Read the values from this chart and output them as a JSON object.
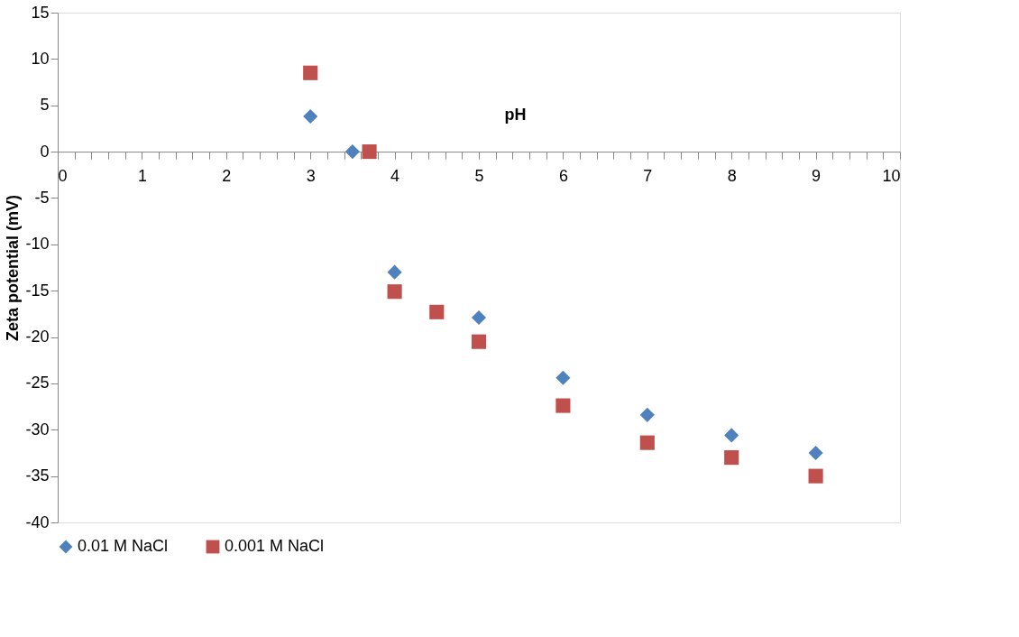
{
  "chart_data": {
    "type": "scatter",
    "xlabel": "pH",
    "ylabel": "Zeta potential (mV)",
    "xlim": [
      0,
      10
    ],
    "ylim": [
      -40,
      15
    ],
    "xticks": [
      0,
      {
        "value": 0.2,
        "label": null
      },
      {
        "value": 0.4,
        "label": null
      },
      {
        "value": 0.6,
        "label": null
      },
      {
        "value": 0.8,
        "label": null
      },
      1,
      {
        "value": 1.2,
        "label": null
      },
      {
        "value": 1.4,
        "label": null
      },
      {
        "value": 1.6,
        "label": null
      },
      {
        "value": 1.8,
        "label": null
      },
      2,
      {
        "value": 2.2,
        "label": null
      },
      {
        "value": 2.4,
        "label": null
      },
      {
        "value": 2.6,
        "label": null
      },
      {
        "value": 2.8,
        "label": null
      },
      3,
      {
        "value": 3.2,
        "label": null
      },
      {
        "value": 3.4,
        "label": null
      },
      {
        "value": 3.6,
        "label": null
      },
      {
        "value": 3.8,
        "label": null
      },
      4,
      {
        "value": 4.2,
        "label": null
      },
      {
        "value": 4.4,
        "label": null
      },
      {
        "value": 4.6,
        "label": null
      },
      {
        "value": 4.8,
        "label": null
      },
      5,
      {
        "value": 5.2,
        "label": null
      },
      {
        "value": 5.4,
        "label": null
      },
      {
        "value": 5.6,
        "label": null
      },
      {
        "value": 5.8,
        "label": null
      },
      6,
      {
        "value": 6.2,
        "label": null
      },
      {
        "value": 6.4,
        "label": null
      },
      {
        "value": 6.6,
        "label": null
      },
      {
        "value": 6.8,
        "label": null
      },
      7,
      {
        "value": 7.2,
        "label": null
      },
      {
        "value": 7.4,
        "label": null
      },
      {
        "value": 7.6,
        "label": null
      },
      {
        "value": 7.8,
        "label": null
      },
      8,
      {
        "value": 8.2,
        "label": null
      },
      {
        "value": 8.4,
        "label": null
      },
      {
        "value": 8.6,
        "label": null
      },
      {
        "value": 8.8,
        "label": null
      },
      9,
      {
        "value": 9.2,
        "label": null
      },
      {
        "value": 9.4,
        "label": null
      },
      {
        "value": 9.6,
        "label": null
      },
      {
        "value": 9.8,
        "label": null
      },
      10
    ],
    "yticks": [
      -40,
      -35,
      -30,
      -25,
      -20,
      -15,
      -10,
      -5,
      0,
      5,
      10,
      15
    ],
    "grid": false,
    "legend": "bottom",
    "series": [
      {
        "name": "0.01 M NaCl",
        "color": "#4f81bd",
        "marker": "diamond",
        "x": [
          3,
          3.5,
          4,
          5,
          6,
          7,
          8,
          9
        ],
        "values": [
          3.8,
          0,
          -13,
          -17.9,
          -24.4,
          -28.4,
          -30.6,
          -32.5
        ]
      },
      {
        "name": "0.001 M NaCl",
        "color": "#c0504d",
        "marker": "square",
        "x": [
          3,
          3.7,
          4,
          4.5,
          5,
          6,
          7,
          8,
          9
        ],
        "values": [
          8.5,
          0,
          -15.1,
          -17.3,
          -20.5,
          -27.4,
          -31.4,
          -33,
          -35
        ]
      }
    ]
  }
}
